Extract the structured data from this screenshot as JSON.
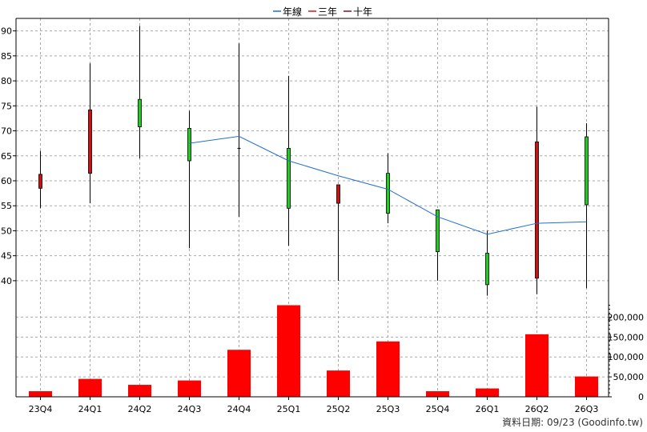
{
  "chart_data": {
    "type": "candlestick",
    "legend": [
      {
        "label": "年線",
        "color": "#1f6fd1"
      },
      {
        "label": "三年",
        "color": "#d01818"
      },
      {
        "label": "十年",
        "color": "#7a1030"
      }
    ],
    "legend_position": "top-center",
    "categories": [
      "23Q4",
      "24Q1",
      "24Q2",
      "24Q3",
      "24Q4",
      "25Q1",
      "25Q2",
      "25Q3",
      "25Q4",
      "26Q1",
      "26Q2",
      "26Q3"
    ],
    "candles": [
      {
        "open": 58.5,
        "close": 61.3,
        "high": 66.0,
        "low": 54.5,
        "color": "red"
      },
      {
        "open": 61.5,
        "close": 74.2,
        "high": 83.5,
        "low": 55.5,
        "color": "red"
      },
      {
        "open": 76.3,
        "close": 70.8,
        "high": 91.0,
        "low": 64.5,
        "color": "green"
      },
      {
        "open": 70.5,
        "close": 64.0,
        "high": 74.0,
        "low": 46.5,
        "color": "green"
      },
      {
        "open": 66.5,
        "close": 66.5,
        "high": 87.5,
        "low": 52.8,
        "color": "doji"
      },
      {
        "open": 66.5,
        "close": 54.5,
        "high": 81.0,
        "low": 47.0,
        "color": "green"
      },
      {
        "open": 55.5,
        "close": 59.2,
        "high": 59.2,
        "low": 40.0,
        "color": "red"
      },
      {
        "open": 61.5,
        "close": 53.5,
        "high": 65.5,
        "low": 51.5,
        "color": "green"
      },
      {
        "open": 54.2,
        "close": 45.8,
        "high": 54.2,
        "low": 40.0,
        "color": "green"
      },
      {
        "open": 45.5,
        "close": 39.2,
        "high": 50.0,
        "low": 37.0,
        "color": "green"
      },
      {
        "open": 40.5,
        "close": 67.8,
        "high": 74.8,
        "low": 37.3,
        "color": "red"
      },
      {
        "open": 68.8,
        "close": 55.2,
        "high": 71.5,
        "low": 38.5,
        "color": "green"
      }
    ],
    "line_series": {
      "name": "年線",
      "start_index": 3,
      "values": [
        67.5,
        68.9,
        64.0,
        61.0,
        58.3,
        52.8,
        49.3,
        51.5,
        51.8
      ]
    },
    "y_price": {
      "ticks": [
        40,
        45,
        50,
        55,
        60,
        65,
        70,
        75,
        80,
        85,
        90
      ],
      "range": [
        35.5,
        92.5
      ]
    },
    "volume": [
      14000,
      45000,
      30000,
      41000,
      118000,
      230000,
      66000,
      139000,
      14000,
      21000,
      157000,
      51000
    ],
    "y_volume": {
      "ticks": [
        "0",
        "50,000",
        "100,000",
        "150,000",
        "200,000"
      ],
      "values": [
        0,
        50000,
        100000,
        150000,
        200000
      ],
      "range": [
        0,
        235000
      ]
    },
    "colors": {
      "up": "#cc1111",
      "down": "#22cc22",
      "volume": "#ff0000",
      "line": "#1f6fd1"
    },
    "grid": true,
    "footer": "資料日期: 09/23 (Goodinfo.tw)"
  }
}
